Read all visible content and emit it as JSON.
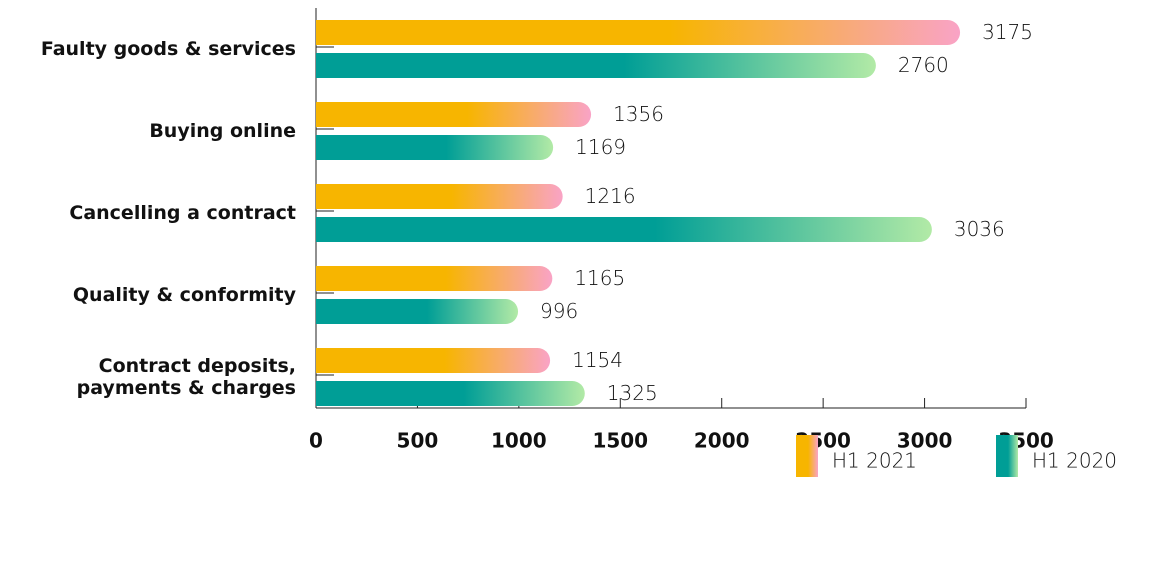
{
  "chart_data": {
    "type": "bar",
    "orientation": "horizontal",
    "categories": [
      "Faulty goods & services",
      "Buying online",
      "Cancelling a contract",
      "Quality & conformity",
      "Contract deposits,\npayments & charges"
    ],
    "series": [
      {
        "name": "H1 2021",
        "color": [
          "#f7b500",
          "#f9a3c6"
        ],
        "values": [
          3175,
          1356,
          1216,
          1165,
          1154
        ]
      },
      {
        "name": "H1 2020",
        "color": [
          "#009e96",
          "#b2eaa6"
        ],
        "values": [
          2760,
          1169,
          3036,
          996,
          1325
        ]
      }
    ],
    "xlim": [
      0,
      3500
    ],
    "xticks": [
      0,
      500,
      1000,
      1500,
      2000,
      2500,
      3000,
      3500
    ],
    "legend": "bottom right"
  }
}
